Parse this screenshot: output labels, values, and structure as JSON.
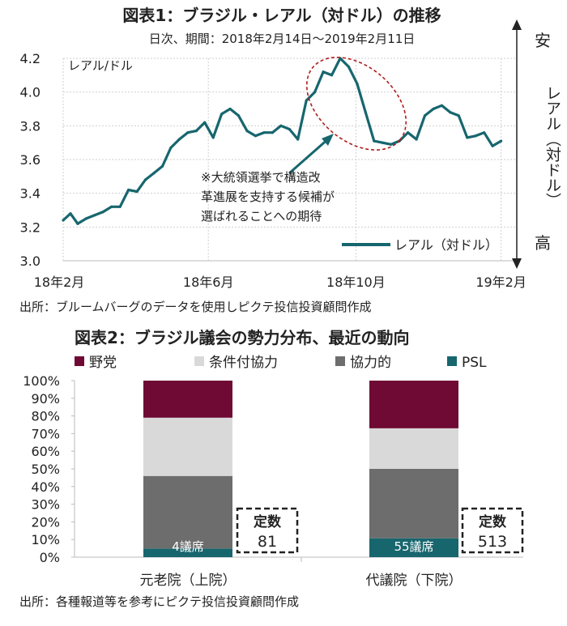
{
  "chart_data": [
    {
      "type": "line",
      "title": "図表1：ブラジル・レアル（対ドル）の推移",
      "subtitle": "日次、期間：2018年2月14日～2019年2月11日",
      "unit_label": "レアル/ドル",
      "right_axis": {
        "top": "安",
        "label": "レアル（対ドル）",
        "bottom": "高"
      },
      "ylim": [
        3.0,
        4.2
      ],
      "y_ticks": [
        "3.0",
        "3.2",
        "3.4",
        "3.6",
        "3.8",
        "4.0",
        "4.2"
      ],
      "x_ticks": [
        "18年2月",
        "18年6月",
        "18年10月",
        "19年2月"
      ],
      "grid": true,
      "legend_position": "bottom-right",
      "annotation": [
        "※大統領選挙で構造改",
        "革進展を支持する候補が",
        "選ばれることへの期待"
      ],
      "source": "出所：ブルームバーグのデータを使用しピクテ投信投資顧問作成",
      "series": [
        {
          "name": "レアル（対ドル）",
          "color": "#17666e",
          "x": [
            "2018-02-14",
            "2018-02-20",
            "2018-02-26",
            "2018-03-05",
            "2018-03-12",
            "2018-03-19",
            "2018-03-26",
            "2018-04-02",
            "2018-04-09",
            "2018-04-16",
            "2018-04-23",
            "2018-04-30",
            "2018-05-07",
            "2018-05-14",
            "2018-05-21",
            "2018-05-28",
            "2018-06-04",
            "2018-06-11",
            "2018-06-18",
            "2018-06-25",
            "2018-07-02",
            "2018-07-09",
            "2018-07-16",
            "2018-07-23",
            "2018-07-30",
            "2018-08-06",
            "2018-08-13",
            "2018-08-20",
            "2018-08-27",
            "2018-09-03",
            "2018-09-10",
            "2018-09-17",
            "2018-09-24",
            "2018-10-01",
            "2018-10-08",
            "2018-10-15",
            "2018-10-22",
            "2018-10-29",
            "2018-11-05",
            "2018-11-12",
            "2018-11-19",
            "2018-11-26",
            "2018-12-03",
            "2018-12-10",
            "2018-12-17",
            "2018-12-24",
            "2018-12-31",
            "2019-01-07",
            "2019-01-14",
            "2019-01-21",
            "2019-01-28",
            "2019-02-04",
            "2019-02-11"
          ],
          "values": [
            3.24,
            3.28,
            3.22,
            3.25,
            3.27,
            3.29,
            3.32,
            3.32,
            3.42,
            3.41,
            3.48,
            3.52,
            3.56,
            3.67,
            3.72,
            3.76,
            3.77,
            3.82,
            3.73,
            3.87,
            3.9,
            3.86,
            3.77,
            3.74,
            3.76,
            3.76,
            3.8,
            3.78,
            3.72,
            3.95,
            4.0,
            4.12,
            4.1,
            4.2,
            4.15,
            4.05,
            3.88,
            3.71,
            3.7,
            3.69,
            3.71,
            3.76,
            3.72,
            3.86,
            3.9,
            3.92,
            3.88,
            3.86,
            3.73,
            3.74,
            3.76,
            3.68,
            3.71
          ]
        }
      ]
    },
    {
      "type": "bar",
      "stacked": true,
      "title": "図表2：ブラジル議会の勢力分布、最近の動向",
      "categories": [
        "元老院（上院）",
        "代議院（下院）"
      ],
      "ylim": [
        0,
        100
      ],
      "y_ticks": [
        "0%",
        "10%",
        "20%",
        "30%",
        "40%",
        "50%",
        "60%",
        "70%",
        "80%",
        "90%",
        "100%"
      ],
      "legend_position": "top",
      "series": [
        {
          "name": "PSL",
          "color": "#17666e",
          "values": [
            4.9,
            10.7
          ]
        },
        {
          "name": "協力的",
          "color": "#6d6d6d",
          "values": [
            41.1,
            39.3
          ]
        },
        {
          "name": "条件付協力",
          "color": "#d9d9d9",
          "values": [
            33.0,
            23.0
          ]
        },
        {
          "name": "野党",
          "color": "#6e0a34",
          "values": [
            21.0,
            27.0
          ]
        }
      ],
      "bar_labels": [
        "4議席",
        "55議席"
      ],
      "seat_boxes": [
        {
          "label": "定数",
          "value": "81"
        },
        {
          "label": "定数",
          "value": "513"
        }
      ],
      "source": "出所：各種報道等を参考にピクテ投信投資顧問作成"
    }
  ]
}
